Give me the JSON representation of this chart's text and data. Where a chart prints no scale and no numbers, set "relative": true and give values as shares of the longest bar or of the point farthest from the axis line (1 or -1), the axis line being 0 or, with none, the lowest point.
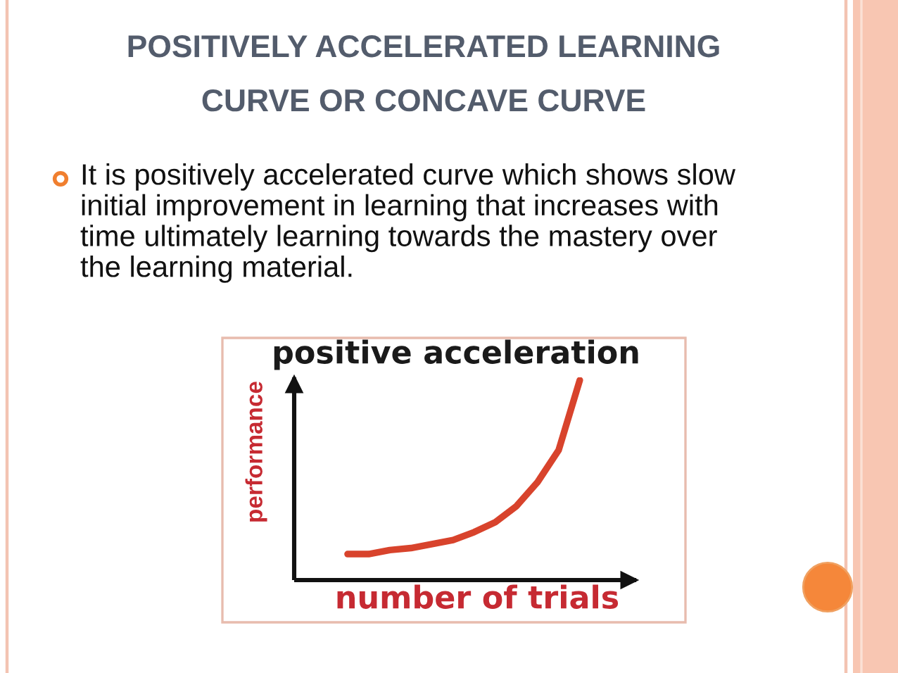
{
  "chart_data": {
    "type": "line",
    "title": "positive acceleration",
    "xlabel": "number of trials",
    "ylabel": "performance",
    "annotations": [
      "POSITIVELY ACCELERATED LEARNING\nCURVE OR CONCAVE CURVE",
      "It is positively accelerated curve which shows slow\ninitial improvement in learning that increases with\ntime ultimately learning towards the mastery over\nthe learning material."
    ],
    "categories": [
      null,
      null,
      null,
      null,
      null,
      null,
      null,
      null,
      null,
      null,
      null,
      null
    ],
    "series": [
      {
        "color": "#d8432c",
        "values": [
          0.13,
          0.13,
          0.15,
          0.16,
          0.18,
          0.2,
          0.24,
          0.29,
          0.37,
          0.49,
          0.65,
          1
        ]
      }
    ],
    "relative": true
  }
}
